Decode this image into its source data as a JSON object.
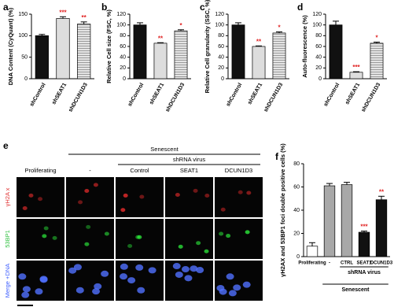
{
  "chart_data": [
    {
      "type": "bar",
      "panel": "a",
      "ylabel": "DNA Content (CyQuant) (%)",
      "categories": [
        "shControl",
        "shSEAT1",
        "shDCUN1D3"
      ],
      "values": [
        100,
        140,
        127
      ],
      "errors": [
        3,
        4,
        5
      ],
      "sig_labels": [
        null,
        "***",
        "**"
      ],
      "colors": [
        "#111111",
        "#dddddd",
        "#b8b8b8"
      ],
      "hatch": [
        false,
        false,
        true
      ],
      "ylim": [
        0,
        150
      ],
      "yticks": [
        0,
        50,
        100,
        150
      ]
    },
    {
      "type": "bar",
      "panel": "b",
      "ylabel": "Relative Cell size (FSC, %)",
      "categories": [
        "shControl",
        "shSEAT1",
        "shDCUN1D3"
      ],
      "values": [
        100,
        66,
        89
      ],
      "errors": [
        4,
        1,
        2
      ],
      "sig_labels": [
        null,
        "**",
        "*"
      ],
      "colors": [
        "#111111",
        "#dddddd",
        "#b8b8b8"
      ],
      "hatch": [
        false,
        false,
        true
      ],
      "ylim": [
        0,
        120
      ],
      "yticks": [
        0,
        20,
        40,
        60,
        80,
        100,
        120
      ]
    },
    {
      "type": "bar",
      "panel": "c",
      "ylabel": "Relative Cell granularity (SSC, %)",
      "categories": [
        "shControl",
        "shSEAT1",
        "shDCUN1D3"
      ],
      "values": [
        100,
        60,
        85
      ],
      "errors": [
        4,
        1,
        2
      ],
      "sig_labels": [
        null,
        "**",
        "*"
      ],
      "colors": [
        "#111111",
        "#dddddd",
        "#b8b8b8"
      ],
      "hatch": [
        false,
        false,
        true
      ],
      "ylim": [
        0,
        120
      ],
      "yticks": [
        0,
        20,
        40,
        60,
        80,
        100,
        120
      ]
    },
    {
      "type": "bar",
      "panel": "d",
      "ylabel": "Auto-fluorescence (%)",
      "categories": [
        "shControl",
        "shSEAT1",
        "shDCUN1D3"
      ],
      "values": [
        100,
        12,
        66
      ],
      "errors": [
        7,
        1,
        2
      ],
      "sig_labels": [
        null,
        "***",
        "*"
      ],
      "colors": [
        "#111111",
        "#dddddd",
        "#b8b8b8"
      ],
      "hatch": [
        false,
        false,
        true
      ],
      "ylim": [
        0,
        120
      ],
      "yticks": [
        0,
        20,
        40,
        60,
        80,
        100,
        120
      ]
    },
    {
      "type": "bar",
      "panel": "f",
      "ylabel": "γH2AX and 53BP1 foci double positive cells (%)",
      "categories": [
        "Proliferating",
        "-",
        "CTRL",
        "SEAT1",
        "DCUN1D3"
      ],
      "values": [
        9,
        61,
        62,
        21,
        49
      ],
      "errors": [
        3,
        2,
        2,
        1,
        3
      ],
      "sig_labels": [
        null,
        null,
        null,
        "***",
        "**"
      ],
      "colors": [
        "#ffffff",
        "#a8a8a8",
        "#a8a8a8",
        "#111111",
        "#111111"
      ],
      "hatch": [
        false,
        false,
        false,
        false,
        false
      ],
      "group_labels": [
        "shRNA virus",
        "Senescent"
      ],
      "ylim": [
        0,
        80
      ],
      "yticks": [
        0,
        20,
        40,
        60,
        80
      ]
    }
  ],
  "image_panel": {
    "panel": "e",
    "group_label": "Senescent",
    "subgroup_label": "shRNA virus",
    "columns": [
      "Proliferating",
      "-",
      "Control",
      "SEAT1",
      "DCUN1D3"
    ],
    "rows": [
      "γH2A x",
      "53BP1",
      "Merge +DNA"
    ]
  }
}
